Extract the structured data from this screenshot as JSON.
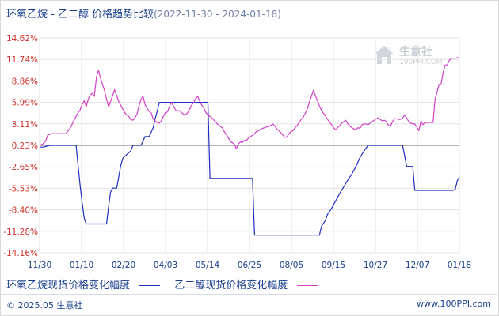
{
  "title": "环氧乙烷 - 乙二醇 价格趋势比较",
  "date_range": "(2022-11-30 - 2024-01-18)",
  "watermark": {
    "brand": "生意社",
    "url": "100PPI.COM"
  },
  "legend": [
    {
      "label": "环氧乙烷现货价格变化幅度",
      "color": "#1f2fbf"
    },
    {
      "label": "乙二醇现货价格变化幅度",
      "color": "#d23fc8"
    }
  ],
  "footer": {
    "copyright": "© 2025.05 生意社",
    "site": "www.100PPI.com"
  },
  "chart_data": {
    "type": "line",
    "x_ticks": [
      "11/30",
      "01/10",
      "02/20",
      "04/03",
      "05/14",
      "06/25",
      "08/05",
      "09/15",
      "10/27",
      "12/07",
      "01/18"
    ],
    "y_ticks": [
      "14.62%",
      "11.74%",
      "8.86%",
      "5.99%",
      "3.11%",
      "0.23%",
      "-2.65%",
      "-5.53%",
      "-8.40%",
      "-11.28%",
      "-14.16%"
    ],
    "ylim": [
      -14.16,
      14.62
    ],
    "x_range_days": [
      0,
      414
    ],
    "baseline": 0.23,
    "grid": true,
    "legend_position": "bottom",
    "series": [
      {
        "name": "环氧乙烷现货价格变化幅度",
        "color": "#1f2fbf",
        "points": [
          [
            0,
            0.0
          ],
          [
            4,
            0.0
          ],
          [
            10,
            0.23
          ],
          [
            16,
            0.23
          ],
          [
            30,
            0.23
          ],
          [
            36,
            0.23
          ],
          [
            38,
            -2.5
          ],
          [
            40,
            -5.2
          ],
          [
            42,
            -7.5
          ],
          [
            44,
            -9.5
          ],
          [
            46,
            -10.3
          ],
          [
            52,
            -10.3
          ],
          [
            60,
            -10.3
          ],
          [
            66,
            -10.3
          ],
          [
            68,
            -8.0
          ],
          [
            70,
            -6.0
          ],
          [
            72,
            -5.5
          ],
          [
            76,
            -5.5
          ],
          [
            78,
            -4.0
          ],
          [
            80,
            -2.5
          ],
          [
            82,
            -1.5
          ],
          [
            86,
            -1.0
          ],
          [
            90,
            -0.5
          ],
          [
            92,
            0.23
          ],
          [
            100,
            0.23
          ],
          [
            104,
            1.4
          ],
          [
            108,
            1.4
          ],
          [
            112,
            2.6
          ],
          [
            114,
            3.8
          ],
          [
            116,
            4.8
          ],
          [
            118,
            5.99
          ],
          [
            126,
            5.99
          ],
          [
            140,
            5.99
          ],
          [
            150,
            5.99
          ],
          [
            160,
            5.99
          ],
          [
            166,
            5.99
          ],
          [
            168,
            -4.2
          ],
          [
            180,
            -4.2
          ],
          [
            200,
            -4.2
          ],
          [
            210,
            -4.2
          ],
          [
            212,
            -11.8
          ],
          [
            226,
            -11.8
          ],
          [
            240,
            -11.8
          ],
          [
            260,
            -11.8
          ],
          [
            276,
            -11.8
          ],
          [
            278,
            -10.6
          ],
          [
            282,
            -9.8
          ],
          [
            284,
            -9.0
          ],
          [
            288,
            -8.2
          ],
          [
            292,
            -7.2
          ],
          [
            296,
            -6.2
          ],
          [
            300,
            -5.3
          ],
          [
            304,
            -4.4
          ],
          [
            308,
            -3.6
          ],
          [
            312,
            -2.6
          ],
          [
            316,
            -1.4
          ],
          [
            320,
            -0.5
          ],
          [
            324,
            0.23
          ],
          [
            340,
            0.23
          ],
          [
            352,
            0.23
          ],
          [
            358,
            0.23
          ],
          [
            360,
            -1.2
          ],
          [
            362,
            -2.6
          ],
          [
            368,
            -2.6
          ],
          [
            370,
            -5.8
          ],
          [
            380,
            -5.8
          ],
          [
            400,
            -5.8
          ],
          [
            408,
            -5.8
          ],
          [
            410,
            -5.6
          ],
          [
            412,
            -4.5
          ],
          [
            414,
            -4.0
          ]
        ]
      },
      {
        "name": "乙二醇现货价格变化幅度",
        "color": "#d23fc8",
        "points": [
          [
            0,
            0.23
          ],
          [
            3,
            0.4
          ],
          [
            6,
            0.8
          ],
          [
            8,
            1.6
          ],
          [
            12,
            1.8
          ],
          [
            20,
            1.8
          ],
          [
            26,
            1.8
          ],
          [
            30,
            2.5
          ],
          [
            34,
            3.6
          ],
          [
            38,
            4.6
          ],
          [
            40,
            5.0
          ],
          [
            42,
            5.7
          ],
          [
            44,
            6.2
          ],
          [
            46,
            5.4
          ],
          [
            48,
            6.4
          ],
          [
            50,
            7.0
          ],
          [
            52,
            7.2
          ],
          [
            54,
            6.8
          ],
          [
            56,
            9.3
          ],
          [
            58,
            10.3
          ],
          [
            60,
            9.3
          ],
          [
            62,
            8.4
          ],
          [
            64,
            7.6
          ],
          [
            66,
            6.4
          ],
          [
            68,
            5.4
          ],
          [
            70,
            6.1
          ],
          [
            72,
            6.9
          ],
          [
            74,
            7.7
          ],
          [
            76,
            6.9
          ],
          [
            78,
            6.1
          ],
          [
            80,
            5.6
          ],
          [
            82,
            5.1
          ],
          [
            84,
            4.6
          ],
          [
            86,
            4.3
          ],
          [
            88,
            4.1
          ],
          [
            90,
            3.7
          ],
          [
            92,
            3.6
          ],
          [
            94,
            3.9
          ],
          [
            96,
            4.4
          ],
          [
            98,
            5.5
          ],
          [
            100,
            6.4
          ],
          [
            102,
            6.8
          ],
          [
            104,
            5.7
          ],
          [
            106,
            5.2
          ],
          [
            108,
            4.8
          ],
          [
            110,
            4.6
          ],
          [
            112,
            3.8
          ],
          [
            114,
            3.5
          ],
          [
            116,
            3.3
          ],
          [
            118,
            3.2
          ],
          [
            120,
            3.5
          ],
          [
            122,
            4.1
          ],
          [
            124,
            4.6
          ],
          [
            126,
            4.7
          ],
          [
            128,
            5.4
          ],
          [
            130,
            6.0
          ],
          [
            132,
            5.5
          ],
          [
            134,
            5.0
          ],
          [
            136,
            4.8
          ],
          [
            138,
            4.9
          ],
          [
            140,
            4.6
          ],
          [
            142,
            4.4
          ],
          [
            144,
            4.3
          ],
          [
            146,
            4.6
          ],
          [
            148,
            5.1
          ],
          [
            150,
            5.6
          ],
          [
            152,
            6.0
          ],
          [
            154,
            6.5
          ],
          [
            156,
            6.8
          ],
          [
            158,
            6.1
          ],
          [
            160,
            5.6
          ],
          [
            162,
            5.2
          ],
          [
            164,
            4.6
          ],
          [
            166,
            4.3
          ],
          [
            168,
            4.1
          ],
          [
            170,
            3.9
          ],
          [
            172,
            3.6
          ],
          [
            174,
            3.3
          ],
          [
            176,
            3.0
          ],
          [
            178,
            2.8
          ],
          [
            180,
            2.6
          ],
          [
            182,
            2.1
          ],
          [
            184,
            1.7
          ],
          [
            186,
            1.3
          ],
          [
            188,
            0.8
          ],
          [
            190,
            0.6
          ],
          [
            192,
            0.4
          ],
          [
            194,
            -0.2
          ],
          [
            196,
            0.4
          ],
          [
            198,
            0.7
          ],
          [
            200,
            0.6
          ],
          [
            202,
            0.9
          ],
          [
            204,
            0.9
          ],
          [
            206,
            1.2
          ],
          [
            208,
            1.4
          ],
          [
            210,
            1.6
          ],
          [
            212,
            1.8
          ],
          [
            214,
            2.1
          ],
          [
            216,
            2.2
          ],
          [
            218,
            2.4
          ],
          [
            220,
            2.5
          ],
          [
            222,
            2.6
          ],
          [
            224,
            2.7
          ],
          [
            226,
            2.8
          ],
          [
            228,
            2.9
          ],
          [
            230,
            3.1
          ],
          [
            232,
            2.8
          ],
          [
            234,
            2.4
          ],
          [
            236,
            2.2
          ],
          [
            238,
            1.9
          ],
          [
            240,
            1.6
          ],
          [
            242,
            1.3
          ],
          [
            244,
            1.4
          ],
          [
            246,
            1.8
          ],
          [
            248,
            2.1
          ],
          [
            250,
            2.2
          ],
          [
            252,
            2.6
          ],
          [
            254,
            2.9
          ],
          [
            256,
            3.3
          ],
          [
            258,
            3.7
          ],
          [
            260,
            4.0
          ],
          [
            262,
            4.5
          ],
          [
            264,
            5.1
          ],
          [
            266,
            6.0
          ],
          [
            268,
            6.8
          ],
          [
            270,
            7.6
          ],
          [
            272,
            6.9
          ],
          [
            274,
            6.2
          ],
          [
            276,
            5.5
          ],
          [
            278,
            4.9
          ],
          [
            280,
            4.5
          ],
          [
            282,
            4.1
          ],
          [
            284,
            3.7
          ],
          [
            286,
            3.3
          ],
          [
            288,
            3.0
          ],
          [
            290,
            2.6
          ],
          [
            292,
            2.3
          ],
          [
            294,
            2.6
          ],
          [
            296,
            2.9
          ],
          [
            298,
            3.2
          ],
          [
            300,
            3.4
          ],
          [
            302,
            3.6
          ],
          [
            304,
            3.1
          ],
          [
            306,
            2.8
          ],
          [
            308,
            2.6
          ],
          [
            310,
            2.4
          ],
          [
            312,
            2.3
          ],
          [
            314,
            2.6
          ],
          [
            316,
            2.5
          ],
          [
            318,
            3.0
          ],
          [
            320,
            3.1
          ],
          [
            322,
            3.1
          ],
          [
            324,
            3.0
          ],
          [
            326,
            3.2
          ],
          [
            328,
            3.4
          ],
          [
            330,
            3.6
          ],
          [
            332,
            3.8
          ],
          [
            334,
            3.9
          ],
          [
            336,
            3.7
          ],
          [
            338,
            3.5
          ],
          [
            340,
            3.6
          ],
          [
            342,
            3.4
          ],
          [
            344,
            2.9
          ],
          [
            346,
            2.8
          ],
          [
            348,
            3.4
          ],
          [
            350,
            3.8
          ],
          [
            352,
            3.8
          ],
          [
            354,
            3.7
          ],
          [
            356,
            3.7
          ],
          [
            358,
            3.9
          ],
          [
            360,
            4.3
          ],
          [
            362,
            3.9
          ],
          [
            364,
            3.4
          ],
          [
            366,
            3.2
          ],
          [
            368,
            3.1
          ],
          [
            370,
            3.1
          ],
          [
            372,
            2.7
          ],
          [
            374,
            2.2
          ],
          [
            376,
            3.5
          ],
          [
            378,
            3.0
          ],
          [
            380,
            3.3
          ],
          [
            382,
            3.3
          ],
          [
            384,
            3.3
          ],
          [
            386,
            3.3
          ],
          [
            388,
            3.3
          ],
          [
            390,
            6.4
          ],
          [
            392,
            7.4
          ],
          [
            394,
            8.4
          ],
          [
            396,
            8.5
          ],
          [
            398,
            10.0
          ],
          [
            400,
            11.0
          ],
          [
            402,
            11.0
          ],
          [
            404,
            11.6
          ],
          [
            406,
            11.9
          ],
          [
            408,
            11.9
          ],
          [
            410,
            11.9
          ],
          [
            412,
            12.0
          ],
          [
            414,
            11.9
          ]
        ]
      }
    ]
  }
}
